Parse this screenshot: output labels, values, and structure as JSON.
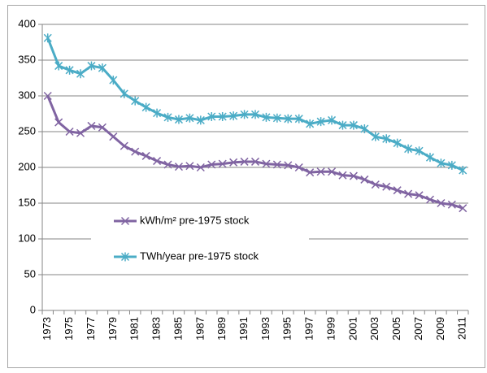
{
  "chart_data": {
    "type": "line",
    "categories": [
      "1973",
      null,
      "1975",
      null,
      "1977",
      null,
      "1979",
      null,
      "1981",
      null,
      "1983",
      null,
      "1985",
      null,
      "1987",
      null,
      "1989",
      null,
      "1991",
      null,
      "1993",
      null,
      "1995",
      null,
      "1997",
      null,
      "1999",
      null,
      "2001",
      null,
      "2003",
      null,
      "2005",
      null,
      "2007",
      null,
      "2009",
      null,
      "2011"
    ],
    "series": [
      {
        "name": "kWh/m² pre-1975 stock",
        "color": "#8064a2",
        "marker": "x",
        "values": [
          300,
          263,
          250,
          248,
          258,
          256,
          243,
          230,
          222,
          216,
          209,
          204,
          201,
          202,
          200,
          204,
          205,
          207,
          208,
          208,
          205,
          204,
          203,
          200,
          193,
          194,
          194,
          189,
          188,
          183,
          176,
          173,
          168,
          163,
          161,
          155,
          150,
          148,
          143
        ]
      },
      {
        "name": "TWh/year pre-1975 stock",
        "color": "#4bacc6",
        "marker": "star",
        "values": [
          381,
          342,
          336,
          331,
          342,
          339,
          322,
          303,
          293,
          284,
          276,
          270,
          267,
          269,
          266,
          271,
          271,
          272,
          274,
          274,
          270,
          269,
          268,
          268,
          261,
          264,
          266,
          259,
          259,
          254,
          243,
          240,
          234,
          226,
          223,
          214,
          206,
          203,
          196
        ]
      }
    ],
    "ylim": [
      0,
      400
    ],
    "yticks": [
      0,
      50,
      100,
      150,
      200,
      250,
      300,
      350,
      400
    ],
    "grid": true
  }
}
